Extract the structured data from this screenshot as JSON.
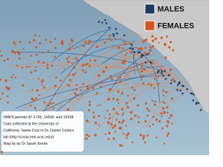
{
  "legend": {
    "items": [
      {
        "label": "MALES",
        "color": "#1f3b63"
      },
      {
        "label": "FEMALES",
        "color": "#d9541e"
      }
    ]
  },
  "caption": {
    "lines": [
      "NMFS permits 87-1743, 14636, and 19108",
      "Data collected at the University of",
      "California, Santa Cruz in Dr. Daniel Costa's",
      "lab (http://costa.eeb.ucsc.edu/)",
      "Map by by Dr Sarah Kienle"
    ]
  }
}
